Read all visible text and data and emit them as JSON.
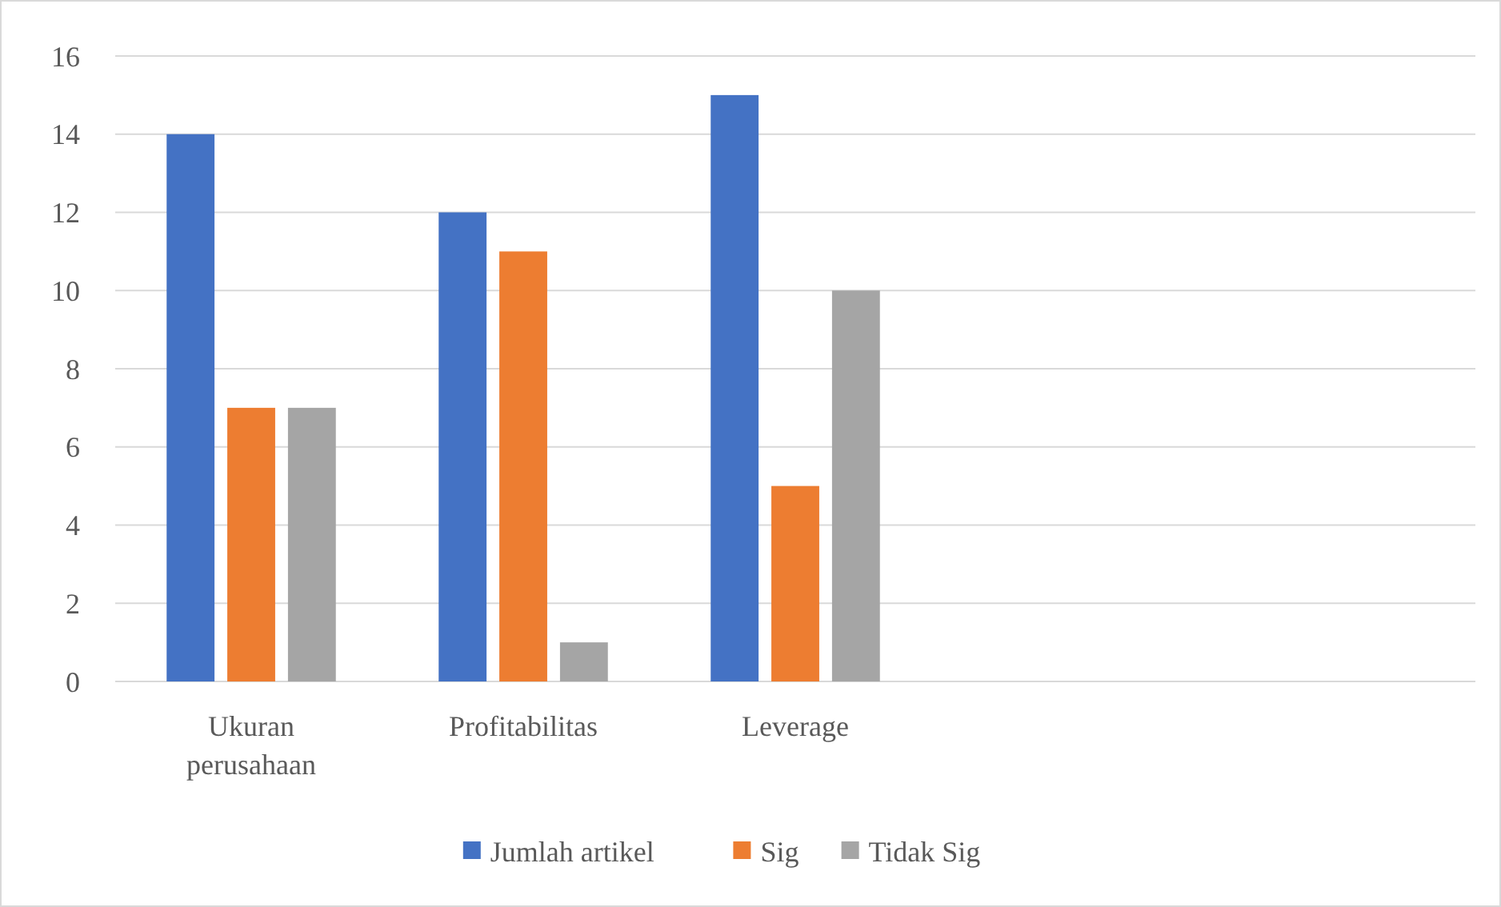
{
  "chart_data": {
    "type": "bar",
    "categories": [
      "Ukuran perusahaan",
      "Profitabilitas",
      "Leverage",
      null,
      null
    ],
    "series": [
      {
        "name": "Jumlah artikel",
        "color": "#4472c4",
        "values": [
          14,
          12,
          15,
          null,
          null
        ]
      },
      {
        "name": "Sig",
        "color": "#ed7d31",
        "values": [
          7,
          11,
          5,
          null,
          null
        ]
      },
      {
        "name": "Tidak Sig",
        "color": "#a5a5a5",
        "values": [
          7,
          1,
          10,
          null,
          null
        ]
      }
    ],
    "ylim": [
      0,
      16
    ],
    "yticks": [
      0,
      2,
      4,
      6,
      8,
      10,
      12,
      14,
      16
    ],
    "grid": "y",
    "legend": "bottom"
  }
}
